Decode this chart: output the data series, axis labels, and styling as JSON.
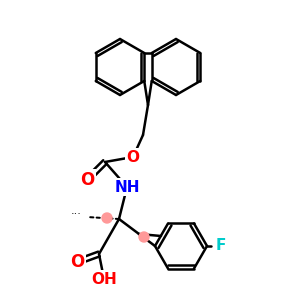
{
  "background": "#ffffff",
  "bond_color": "#000000",
  "bond_width": 1.8,
  "atom_colors": {
    "O": "#ff0000",
    "N": "#0000ff",
    "F": "#00cccc",
    "C": "#000000"
  },
  "font_size": 11,
  "stereo_dot_color": "#ff9999"
}
